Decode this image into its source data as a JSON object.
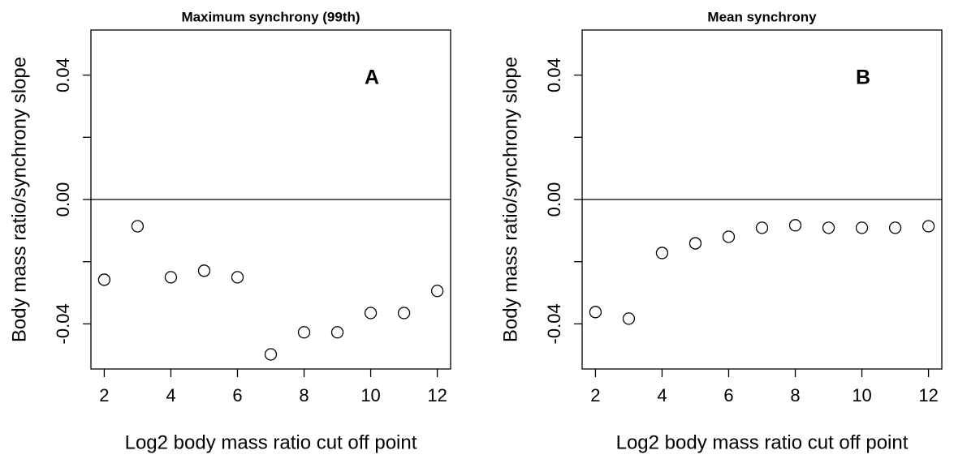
{
  "chart_data": [
    {
      "type": "scatter",
      "title": "Maximum synchrony (99th)",
      "annotation": "A",
      "x_label": "Log2 body mass ratio cut off point",
      "y_label": "Body mass ratio/synchrony slope",
      "x": [
        2,
        3,
        4,
        5,
        6,
        7,
        8,
        9,
        10,
        11,
        12
      ],
      "values": [
        -0.0258,
        -0.0086,
        -0.025,
        -0.0229,
        -0.025,
        -0.0498,
        -0.0427,
        -0.0427,
        -0.0365,
        -0.0365,
        -0.0294
      ],
      "xlim": [
        1.6,
        12.4
      ],
      "ylim": [
        -0.0545,
        0.0545
      ],
      "xticks": [
        2,
        4,
        6,
        8,
        10,
        12
      ],
      "yticks": [
        -0.04,
        {
          "value": -0.02,
          "label": null
        },
        {
          "value": 0,
          "label": "0.00"
        },
        {
          "value": 0.02,
          "label": null
        },
        0.04
      ],
      "hline": 0,
      "color": "#000000"
    },
    {
      "type": "scatter",
      "title": "Mean synchrony",
      "annotation": "B",
      "x_label": "Log2 body mass ratio cut off point",
      "y_label": "Body mass ratio/synchrony slope",
      "x": [
        2,
        3,
        4,
        5,
        6,
        7,
        8,
        9,
        10,
        11,
        12
      ],
      "values": [
        -0.0362,
        -0.0383,
        -0.0172,
        -0.0141,
        -0.012,
        -0.0091,
        -0.0083,
        -0.0091,
        -0.0091,
        -0.0091,
        -0.0086
      ],
      "xlim": [
        1.6,
        12.4
      ],
      "ylim": [
        -0.0545,
        0.0545
      ],
      "xticks": [
        2,
        4,
        6,
        8,
        10,
        12
      ],
      "yticks": [
        -0.04,
        {
          "value": -0.02,
          "label": null
        },
        {
          "value": 0,
          "label": "0.00"
        },
        {
          "value": 0.02,
          "label": null
        },
        0.04
      ],
      "hline": 0,
      "color": "#000000"
    }
  ]
}
